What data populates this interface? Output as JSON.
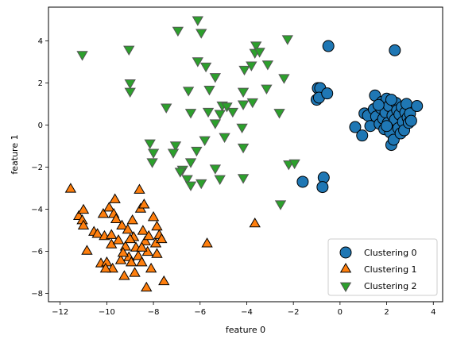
{
  "chart_data": {
    "type": "scatter",
    "title": "",
    "xlabel": "feature 0",
    "ylabel": "feature 1",
    "xlim": [
      -12.5,
      4.4
    ],
    "ylim": [
      -8.4,
      5.6
    ],
    "xticks": [
      -12,
      -10,
      -8,
      -6,
      -4,
      -2,
      0,
      2,
      4
    ],
    "yticks": [
      -8,
      -6,
      -4,
      -2,
      0,
      2,
      4
    ],
    "legend_position": "lower-right",
    "series": [
      {
        "name": "Clustering 0",
        "marker": "circle",
        "color": "#1f77b4",
        "points": [
          [
            -0.5,
            3.75
          ],
          [
            2.35,
            3.55
          ],
          [
            -0.95,
            1.75
          ],
          [
            -0.85,
            1.75
          ],
          [
            -1.0,
            1.2
          ],
          [
            -0.9,
            1.3
          ],
          [
            -0.55,
            1.5
          ],
          [
            -1.6,
            -2.7
          ],
          [
            -0.7,
            -2.5
          ],
          [
            -0.75,
            -2.95
          ],
          [
            0.65,
            -0.1
          ],
          [
            0.95,
            -0.5
          ],
          [
            1.05,
            0.55
          ],
          [
            1.2,
            0.45
          ],
          [
            1.3,
            -0.05
          ],
          [
            1.45,
            0.75
          ],
          [
            1.5,
            1.4
          ],
          [
            1.55,
            0.4
          ],
          [
            1.7,
            0.05
          ],
          [
            1.75,
            0.8
          ],
          [
            1.8,
            1.1
          ],
          [
            1.85,
            0.3
          ],
          [
            1.9,
            -0.2
          ],
          [
            1.95,
            0.6
          ],
          [
            2.0,
            1.25
          ],
          [
            2.05,
            0.1
          ],
          [
            2.1,
            0.9
          ],
          [
            2.15,
            -0.35
          ],
          [
            2.2,
            -0.95
          ],
          [
            2.25,
            0.45
          ],
          [
            2.3,
            -0.7
          ],
          [
            2.35,
            0.25
          ],
          [
            2.4,
            1.05
          ],
          [
            2.45,
            0.7
          ],
          [
            2.5,
            -0.15
          ],
          [
            2.55,
            0.5
          ],
          [
            2.6,
            -0.4
          ],
          [
            2.65,
            0.85
          ],
          [
            2.7,
            0.15
          ],
          [
            2.75,
            -0.25
          ],
          [
            2.8,
            0.6
          ],
          [
            2.85,
            1.0
          ],
          [
            2.9,
            0.35
          ],
          [
            2.95,
            0.1
          ],
          [
            3.0,
            0.55
          ],
          [
            3.05,
            0.2
          ],
          [
            3.3,
            0.9
          ],
          [
            2.2,
            1.2
          ],
          [
            1.65,
            0.95
          ],
          [
            2.0,
            -0.05
          ]
        ]
      },
      {
        "name": "Clustering 1",
        "marker": "triangle-up",
        "color": "#ff7f0e",
        "points": [
          [
            -11.55,
            -3.05
          ],
          [
            -11.2,
            -4.35
          ],
          [
            -11.0,
            -4.05
          ],
          [
            -11.05,
            -4.55
          ],
          [
            -11.0,
            -4.8
          ],
          [
            -10.85,
            -6.0
          ],
          [
            -10.55,
            -5.1
          ],
          [
            -10.4,
            -5.2
          ],
          [
            -10.25,
            -6.6
          ],
          [
            -10.15,
            -4.25
          ],
          [
            -10.1,
            -5.3
          ],
          [
            -10.0,
            -6.55
          ],
          [
            -9.9,
            -3.95
          ],
          [
            -9.8,
            -5.25
          ],
          [
            -9.8,
            -5.7
          ],
          [
            -9.75,
            -6.85
          ],
          [
            -9.7,
            -4.25
          ],
          [
            -9.65,
            -3.55
          ],
          [
            -9.6,
            -4.5
          ],
          [
            -9.5,
            -5.5
          ],
          [
            -9.4,
            -6.45
          ],
          [
            -9.35,
            -4.8
          ],
          [
            -9.25,
            -7.2
          ],
          [
            -9.2,
            -5.8
          ],
          [
            -9.1,
            -5.0
          ],
          [
            -9.05,
            -6.3
          ],
          [
            -8.95,
            -6.55
          ],
          [
            -8.9,
            -4.55
          ],
          [
            -8.85,
            -5.35
          ],
          [
            -8.8,
            -7.05
          ],
          [
            -8.75,
            -5.85
          ],
          [
            -8.65,
            -6.25
          ],
          [
            -8.6,
            -3.1
          ],
          [
            -8.55,
            -4.0
          ],
          [
            -8.5,
            -6.55
          ],
          [
            -8.45,
            -5.05
          ],
          [
            -8.4,
            -3.8
          ],
          [
            -8.35,
            -5.55
          ],
          [
            -8.3,
            -7.75
          ],
          [
            -8.25,
            -6.05
          ],
          [
            -8.2,
            -5.3
          ],
          [
            -8.1,
            -6.85
          ],
          [
            -8.0,
            -4.4
          ],
          [
            -7.9,
            -5.65
          ],
          [
            -7.85,
            -6.15
          ],
          [
            -7.85,
            -4.85
          ],
          [
            -7.75,
            -5.25
          ],
          [
            -7.65,
            -5.45
          ],
          [
            -7.55,
            -7.45
          ],
          [
            -8.5,
            -5.85
          ],
          [
            -9.0,
            -5.45
          ],
          [
            -9.3,
            -6.1
          ],
          [
            -5.7,
            -5.65
          ],
          [
            -3.65,
            -4.7
          ],
          [
            -10.05,
            -6.85
          ]
        ]
      },
      {
        "name": "Clustering 2",
        "marker": "triangle-down",
        "color": "#2ca02c",
        "points": [
          [
            -6.1,
            5.0
          ],
          [
            -5.95,
            4.4
          ],
          [
            -6.95,
            4.5
          ],
          [
            -2.25,
            4.1
          ],
          [
            -3.6,
            3.8
          ],
          [
            -3.65,
            3.45
          ],
          [
            -3.45,
            3.5
          ],
          [
            -3.1,
            2.9
          ],
          [
            -3.8,
            2.85
          ],
          [
            -4.1,
            2.65
          ],
          [
            -5.75,
            2.8
          ],
          [
            -6.1,
            3.05
          ],
          [
            -5.35,
            2.3
          ],
          [
            -9.05,
            3.6
          ],
          [
            -11.05,
            3.35
          ],
          [
            -9.0,
            2.0
          ],
          [
            -9.0,
            1.6
          ],
          [
            -2.4,
            2.25
          ],
          [
            -3.15,
            1.75
          ],
          [
            -4.15,
            1.6
          ],
          [
            -4.15,
            1.0
          ],
          [
            -3.75,
            1.1
          ],
          [
            -5.05,
            0.95
          ],
          [
            -4.85,
            0.9
          ],
          [
            -6.5,
            1.65
          ],
          [
            -5.6,
            1.7
          ],
          [
            -7.45,
            0.85
          ],
          [
            -6.4,
            0.6
          ],
          [
            -5.65,
            0.65
          ],
          [
            -5.15,
            0.55
          ],
          [
            -5.35,
            0.1
          ],
          [
            -2.6,
            0.6
          ],
          [
            -4.6,
            0.65
          ],
          [
            -4.2,
            -0.1
          ],
          [
            -4.95,
            -0.55
          ],
          [
            -5.8,
            -0.7
          ],
          [
            -8.15,
            -0.85
          ],
          [
            -8.0,
            -1.3
          ],
          [
            -8.05,
            -1.75
          ],
          [
            -7.05,
            -0.95
          ],
          [
            -7.15,
            -1.3
          ],
          [
            -6.15,
            -1.2
          ],
          [
            -6.4,
            -1.75
          ],
          [
            -6.75,
            -2.1
          ],
          [
            -6.55,
            -2.55
          ],
          [
            -6.4,
            -2.85
          ],
          [
            -5.95,
            -2.75
          ],
          [
            -5.35,
            -2.05
          ],
          [
            -5.15,
            -2.55
          ],
          [
            -4.15,
            -1.05
          ],
          [
            -4.15,
            -2.5
          ],
          [
            -2.2,
            -1.85
          ],
          [
            -1.95,
            -1.8
          ],
          [
            -2.55,
            -3.75
          ],
          [
            -6.85,
            -2.2
          ]
        ]
      }
    ]
  }
}
